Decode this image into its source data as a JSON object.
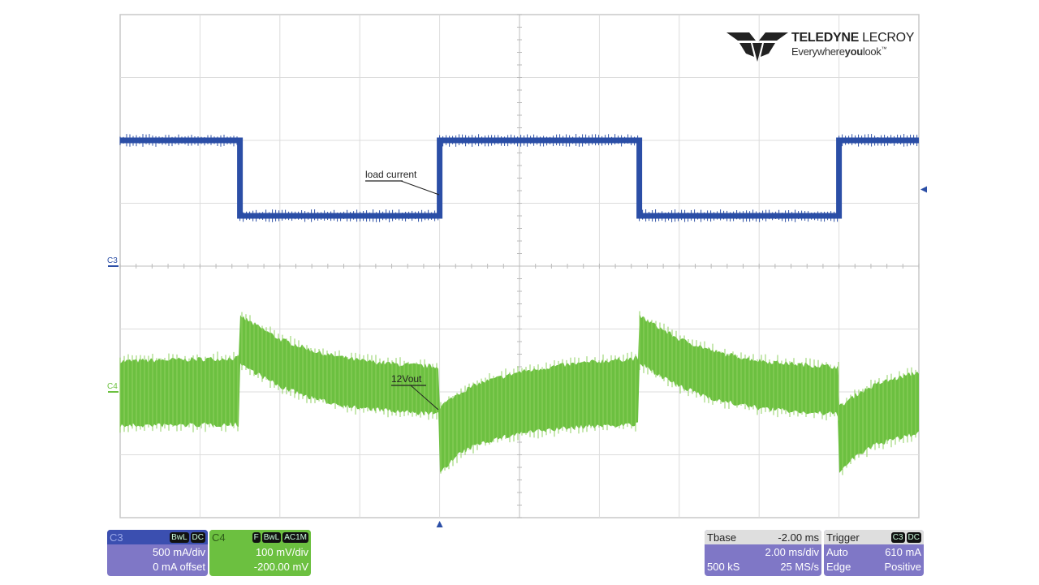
{
  "chart_data": {
    "type": "line",
    "title": "",
    "xlabel": "",
    "ylabel": "",
    "x_unit": "ms",
    "xlim": [
      -8,
      12
    ],
    "grid": true,
    "grid_divisions": {
      "horizontal": 10,
      "vertical": 8
    },
    "series": [
      {
        "name": "load current",
        "channel": "C3",
        "unit": "mA",
        "color": "#2b4ea6",
        "scale_per_div": 500,
        "offset": 0,
        "points": [
          [
            -8,
            1000
          ],
          [
            -5,
            1000
          ],
          [
            -5,
            400
          ],
          [
            0,
            400
          ],
          [
            0,
            1000
          ],
          [
            5,
            1000
          ],
          [
            5,
            400
          ],
          [
            10,
            400
          ],
          [
            10,
            1000
          ],
          [
            12,
            1000
          ]
        ]
      },
      {
        "name": "12Vout",
        "channel": "C4",
        "unit": "mV",
        "color": "#6cc040",
        "scale_per_div": 100,
        "offset": -200,
        "envelope_points_t_upper_lower": [
          [
            -8,
            45,
            -50
          ],
          [
            -5,
            50,
            -48
          ],
          [
            -5,
            117,
            49
          ],
          [
            -4,
            80,
            12
          ],
          [
            -3,
            58,
            -10
          ],
          [
            -2,
            46,
            -22
          ],
          [
            -1,
            40,
            -28
          ],
          [
            0,
            36,
            -32
          ],
          [
            0,
            -28,
            -123
          ],
          [
            0.5,
            -5,
            -95
          ],
          [
            1,
            10,
            -78
          ],
          [
            2,
            28,
            -62
          ],
          [
            3,
            38,
            -55
          ],
          [
            4,
            45,
            -50
          ],
          [
            5,
            50,
            -48
          ],
          [
            5,
            117,
            49
          ],
          [
            6,
            80,
            12
          ],
          [
            7,
            58,
            -10
          ],
          [
            8,
            46,
            -22
          ],
          [
            9,
            40,
            -28
          ],
          [
            10,
            36,
            -32
          ],
          [
            10,
            -28,
            -123
          ],
          [
            10.5,
            -5,
            -95
          ],
          [
            11,
            10,
            -78
          ],
          [
            12,
            28,
            -62
          ]
        ]
      }
    ],
    "annotations": [
      "load current",
      "12Vout"
    ],
    "trigger_time": 0,
    "trigger_level_mA": 610
  },
  "markers": {
    "c3": "C3",
    "c4": "C4"
  },
  "logo": {
    "brand": "TELEDYNE",
    "brand2": "LECROY",
    "tagline_a": "Everywhere",
    "tagline_b": "you",
    "tagline_c": "look",
    "tm": "™"
  },
  "c3_box": {
    "label": "C3",
    "tags": [
      "BwL",
      "DC"
    ],
    "scale": "500 mA/div",
    "offset": "0 mA offset"
  },
  "c4_box": {
    "label": "C4",
    "tags": [
      "F",
      "BwL",
      "AC1M"
    ],
    "scale": "100 mV/div",
    "offset": "-200.00 mV"
  },
  "timebase": {
    "label": "Tbase",
    "delay": "-2.00 ms",
    "scale": "2.00 ms/div",
    "samples": "500 kS",
    "rate": "25 MS/s"
  },
  "trigger": {
    "label": "Trigger",
    "tags": [
      "C3",
      "DC"
    ],
    "mode": "Auto",
    "level": "610 mA",
    "type": "Edge",
    "slope": "Positive"
  }
}
